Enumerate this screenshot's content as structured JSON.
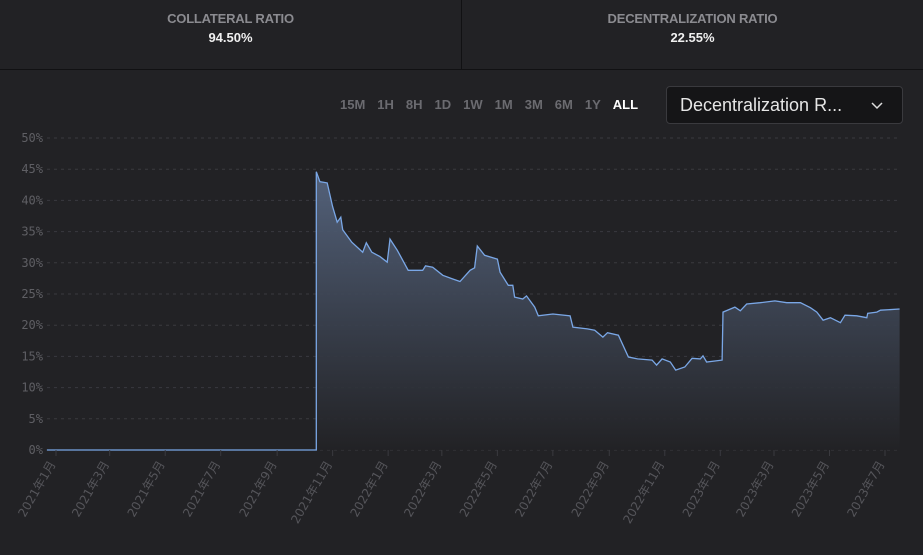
{
  "stats": [
    {
      "label": "COLLATERAL RATIO",
      "value": "94.50%"
    },
    {
      "label": "DECENTRALIZATION RATIO",
      "value": "22.55%"
    }
  ],
  "ranges": [
    "15M",
    "1H",
    "8H",
    "1D",
    "1W",
    "1M",
    "3M",
    "6M",
    "1Y",
    "ALL"
  ],
  "active_range": "ALL",
  "dropdown": {
    "selected": "Decentralization R..."
  },
  "colors": {
    "line": "#7aa7e6",
    "fill_top": "#56657f",
    "fill_bottom": "#222225",
    "background": "#222225"
  },
  "chart_data": {
    "type": "area",
    "xlabel": "",
    "ylabel": "",
    "ylim": [
      0,
      50
    ],
    "y_ticks": [
      "0%",
      "5%",
      "10%",
      "15%",
      "20%",
      "25%",
      "30%",
      "35%",
      "40%",
      "45%",
      "50%"
    ],
    "x_ticks": [
      {
        "date": "2021-01-01",
        "label": "2021年1月"
      },
      {
        "date": "2021-03-01",
        "label": "2021年3月"
      },
      {
        "date": "2021-05-01",
        "label": "2021年5月"
      },
      {
        "date": "2021-07-01",
        "label": "2021年7月"
      },
      {
        "date": "2021-09-01",
        "label": "2021年9月"
      },
      {
        "date": "2021-11-01",
        "label": "2021年11月"
      },
      {
        "date": "2022-01-01",
        "label": "2022年1月"
      },
      {
        "date": "2022-03-01",
        "label": "2022年3月"
      },
      {
        "date": "2022-05-01",
        "label": "2022年5月"
      },
      {
        "date": "2022-07-01",
        "label": "2022年7月"
      },
      {
        "date": "2022-09-01",
        "label": "2022年9月"
      },
      {
        "date": "2022-11-01",
        "label": "2022年11月"
      },
      {
        "date": "2023-01-01",
        "label": "2023年1月"
      },
      {
        "date": "2023-03-01",
        "label": "2023年3月"
      },
      {
        "date": "2023-05-01",
        "label": "2023年5月"
      },
      {
        "date": "2023-07-01",
        "label": "2023年7月"
      }
    ],
    "grid": "horizontal dashed",
    "series": [
      {
        "points": [
          [
            "2020-12-22",
            0
          ],
          [
            "2021-10-14",
            0
          ],
          [
            "2021-10-14",
            44.6
          ],
          [
            "2021-10-18",
            43.0
          ],
          [
            "2021-10-26",
            42.8
          ],
          [
            "2021-11-01",
            39.0
          ],
          [
            "2021-11-06",
            36.5
          ],
          [
            "2021-11-10",
            37.3
          ],
          [
            "2021-11-12",
            35.3
          ],
          [
            "2021-11-22",
            33.3
          ],
          [
            "2021-12-04",
            31.7
          ],
          [
            "2021-12-08",
            33.2
          ],
          [
            "2021-12-14",
            31.7
          ],
          [
            "2021-12-23",
            31.0
          ],
          [
            "2021-12-31",
            30.1
          ],
          [
            "2022-01-03",
            33.8
          ],
          [
            "2022-01-11",
            32.0
          ],
          [
            "2022-01-23",
            28.8
          ],
          [
            "2022-02-08",
            28.8
          ],
          [
            "2022-02-11",
            29.5
          ],
          [
            "2022-02-19",
            29.3
          ],
          [
            "2022-03-02",
            28.0
          ],
          [
            "2022-03-13",
            27.4
          ],
          [
            "2022-03-21",
            27.0
          ],
          [
            "2022-04-01",
            28.8
          ],
          [
            "2022-04-06",
            29.2
          ],
          [
            "2022-04-09",
            32.7
          ],
          [
            "2022-04-17",
            31.2
          ],
          [
            "2022-05-01",
            30.6
          ],
          [
            "2022-05-04",
            28.5
          ],
          [
            "2022-05-13",
            26.4
          ],
          [
            "2022-05-18",
            26.4
          ],
          [
            "2022-05-20",
            24.5
          ],
          [
            "2022-05-29",
            24.2
          ],
          [
            "2022-06-02",
            24.7
          ],
          [
            "2022-06-11",
            22.9
          ],
          [
            "2022-06-15",
            21.5
          ],
          [
            "2022-07-01",
            21.8
          ],
          [
            "2022-07-20",
            21.5
          ],
          [
            "2022-07-23",
            19.7
          ],
          [
            "2022-08-08",
            19.4
          ],
          [
            "2022-08-16",
            19.2
          ],
          [
            "2022-08-25",
            18.1
          ],
          [
            "2022-08-30",
            18.8
          ],
          [
            "2022-09-11",
            18.4
          ],
          [
            "2022-09-22",
            14.9
          ],
          [
            "2022-10-02",
            14.6
          ],
          [
            "2022-10-18",
            14.4
          ],
          [
            "2022-10-23",
            13.6
          ],
          [
            "2022-10-29",
            14.6
          ],
          [
            "2022-11-07",
            14.1
          ],
          [
            "2022-11-13",
            12.8
          ],
          [
            "2022-11-23",
            13.3
          ],
          [
            "2022-12-01",
            14.7
          ],
          [
            "2022-12-10",
            14.6
          ],
          [
            "2022-12-13",
            15.1
          ],
          [
            "2022-12-17",
            14.1
          ],
          [
            "2023-01-03",
            14.4
          ],
          [
            "2023-01-04",
            22.1
          ],
          [
            "2023-01-17",
            22.9
          ],
          [
            "2023-01-23",
            22.3
          ],
          [
            "2023-01-30",
            23.4
          ],
          [
            "2023-02-14",
            23.6
          ],
          [
            "2023-03-02",
            23.9
          ],
          [
            "2023-03-15",
            23.6
          ],
          [
            "2023-03-30",
            23.6
          ],
          [
            "2023-04-10",
            22.8
          ],
          [
            "2023-04-17",
            22.1
          ],
          [
            "2023-04-24",
            20.8
          ],
          [
            "2023-05-02",
            21.2
          ],
          [
            "2023-05-13",
            20.4
          ],
          [
            "2023-05-18",
            21.6
          ],
          [
            "2023-05-31",
            21.5
          ],
          [
            "2023-06-11",
            21.2
          ],
          [
            "2023-06-12",
            21.9
          ],
          [
            "2023-06-22",
            22.1
          ],
          [
            "2023-06-26",
            22.4
          ],
          [
            "2023-07-17",
            22.6
          ]
        ]
      }
    ]
  }
}
